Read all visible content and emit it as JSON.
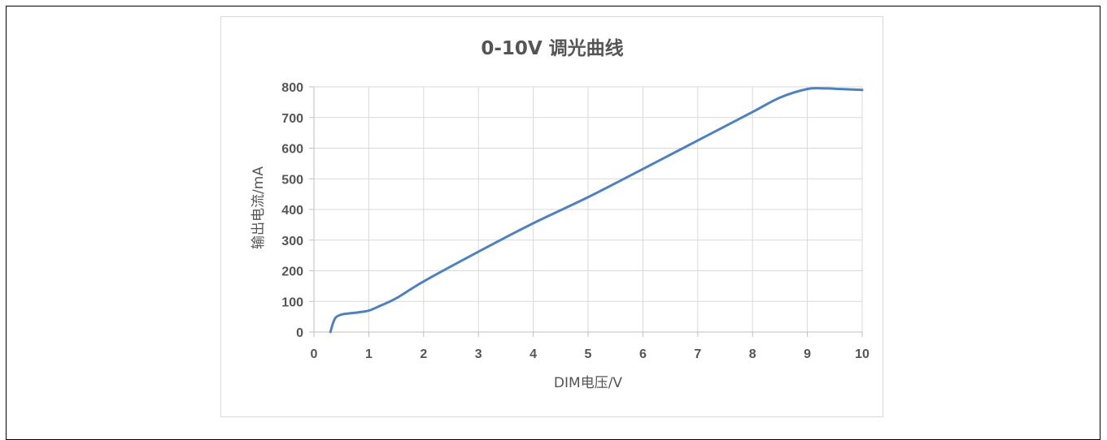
{
  "chart_data": {
    "type": "line",
    "title": "0-10V 调光曲线",
    "xlabel": "DIM电压/V",
    "ylabel": "输出电流/mA",
    "xlim": [
      0,
      10
    ],
    "ylim": [
      0,
      800
    ],
    "x_ticks": [
      0,
      1,
      2,
      3,
      4,
      5,
      6,
      7,
      8,
      9,
      10
    ],
    "y_ticks": [
      0,
      100,
      200,
      300,
      400,
      500,
      600,
      700,
      800
    ],
    "grid": true,
    "legend": "none",
    "series": [
      {
        "color": "#4f81bd",
        "x": [
          0.3,
          0.35,
          0.4,
          0.5,
          0.6,
          0.8,
          1.0,
          1.2,
          1.5,
          2.0,
          3.0,
          4.0,
          5.0,
          6.0,
          7.0,
          8.0,
          8.5,
          9.0,
          9.3,
          9.6,
          10.0
        ],
        "y": [
          0,
          30,
          48,
          57,
          60,
          64,
          70,
          85,
          110,
          165,
          262,
          355,
          440,
          532,
          625,
          718,
          765,
          793,
          795,
          793,
          790
        ]
      }
    ]
  }
}
